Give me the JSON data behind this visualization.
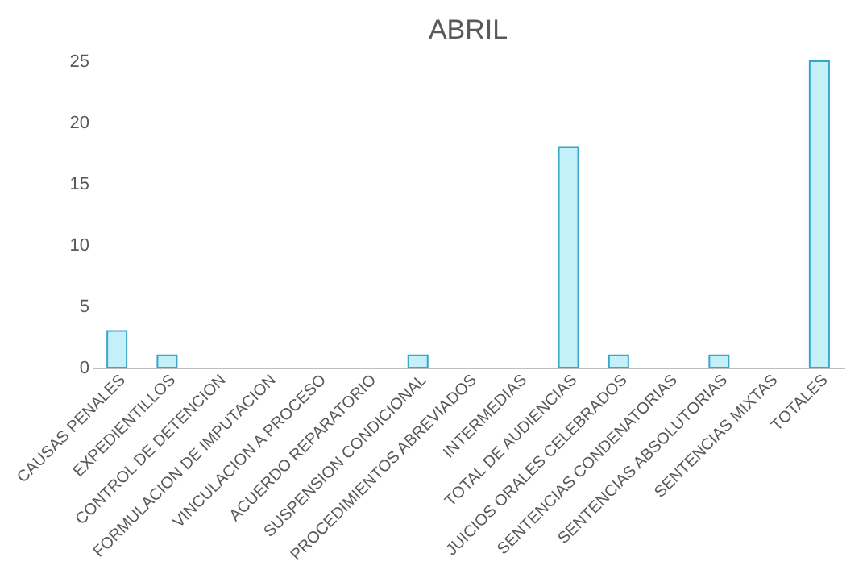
{
  "chart_data": {
    "type": "bar",
    "title": "ABRIL",
    "categories": [
      "CAUSAS PENALES",
      "EXPEDIENTILLOS",
      "CONTROL DE DETENCION",
      "FORMULACION DE IMPUTACION",
      "VINCULACION A PROCESO",
      "ACUERDO REPARATORIO",
      "SUSPENSION CONDICIONAL",
      "PROCEDIMIENTOS ABREVIADOS",
      "INTERMEDIAS",
      "TOTAL DE AUDIENCIAS",
      "JUICIOS ORALES CELEBRADOS",
      "SENTENCIAS CONDENATORIAS",
      "SENTENCIAS ABSOLUTORIAS",
      "SENTENCIAS MIXTAS",
      "TOTALES"
    ],
    "values": [
      3,
      1,
      0,
      0,
      0,
      0,
      1,
      0,
      0,
      18,
      1,
      0,
      1,
      0,
      25
    ],
    "color": "#c4f0fa",
    "ylim": [
      0,
      25
    ],
    "yticks": [
      0,
      5,
      10,
      15,
      20,
      25
    ],
    "grid": false
  }
}
